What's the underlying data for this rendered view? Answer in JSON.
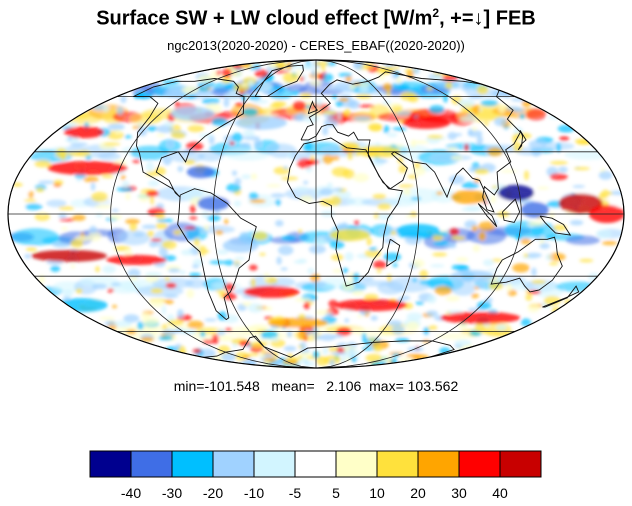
{
  "title": {
    "main": "Surface SW + LW cloud effect [W/m",
    "sup": "2",
    "tail": ", +=↓]  FEB"
  },
  "subtitle": "ngc2013(2020-2020) - CERES_EBAF((2020-2020))",
  "stats": {
    "min_label": "min=",
    "min": "-101.548",
    "mean_label": "mean=",
    "mean": "2.106",
    "max_label": "max=",
    "max": "103.562"
  },
  "colorbar": {
    "colors": [
      "#00008f",
      "#3f6ee6",
      "#00bfff",
      "#a0d2ff",
      "#d2f5ff",
      "#ffffff",
      "#ffffc8",
      "#ffe13c",
      "#ffa500",
      "#ff0000",
      "#c80000"
    ],
    "labels": [
      "-40",
      "-30",
      "-20",
      "-10",
      "-5",
      "5",
      "10",
      "20",
      "30",
      "40"
    ]
  },
  "map": {
    "projection": "mollweide",
    "graticule": true,
    "coastlines": true
  }
}
